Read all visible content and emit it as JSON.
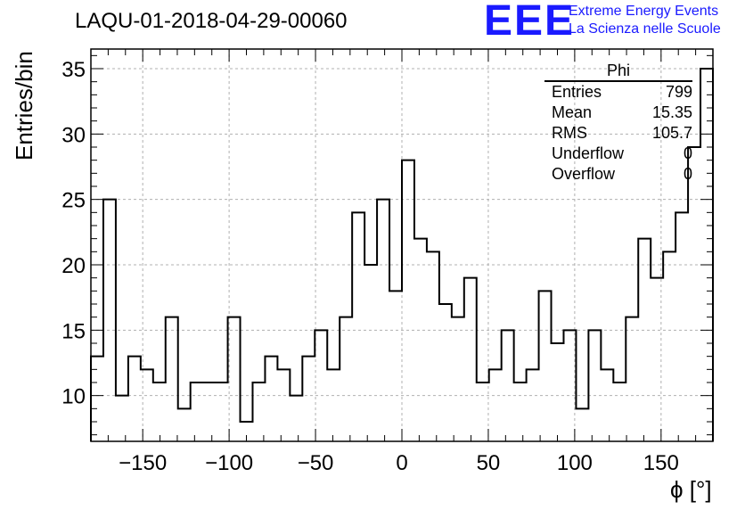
{
  "header": {
    "title": "LAQU-01-2018-04-29-00060",
    "logo": "EEE",
    "logo_line1": "Extreme Energy Events",
    "logo_line2": "La Scienza nelle Scuole"
  },
  "stats": {
    "name": "Phi",
    "rows": [
      {
        "label": "Entries",
        "value": "799"
      },
      {
        "label": "Mean",
        "value": "15.35"
      },
      {
        "label": "RMS",
        "value": "105.7"
      },
      {
        "label": "Underflow",
        "value": "0"
      },
      {
        "label": "Overflow",
        "value": "0"
      }
    ]
  },
  "chart_data": {
    "type": "histogram",
    "title": "LAQU-01-2018-04-29-00060",
    "xlabel": "ϕ [°]",
    "ylabel": "Entries/bin",
    "xlim": [
      -180,
      180
    ],
    "ylim": [
      6.5,
      36.5
    ],
    "bin_width": 7.2,
    "bin_edges_start": -180,
    "values": [
      13,
      25,
      10,
      13,
      12,
      11,
      16,
      9,
      11,
      11,
      11,
      16,
      8,
      11,
      13,
      12,
      10,
      13,
      15,
      12,
      16,
      24,
      20,
      25,
      18,
      28,
      22,
      21,
      17,
      16,
      19,
      11,
      12,
      15,
      11,
      12,
      18,
      14,
      15,
      9,
      15,
      12,
      11,
      16,
      22,
      19,
      21,
      24,
      29,
      35
    ],
    "xticks": [
      -150,
      -100,
      -50,
      0,
      50,
      100,
      150
    ],
    "xtick_labels": [
      "−150",
      "−100",
      "−50",
      "0",
      "50",
      "100",
      "150"
    ],
    "yticks": [
      10,
      15,
      20,
      25,
      30,
      35
    ],
    "ytick_labels": [
      "10",
      "15",
      "20",
      "25",
      "30",
      "35"
    ],
    "grid": true,
    "line_color": "#000000"
  }
}
